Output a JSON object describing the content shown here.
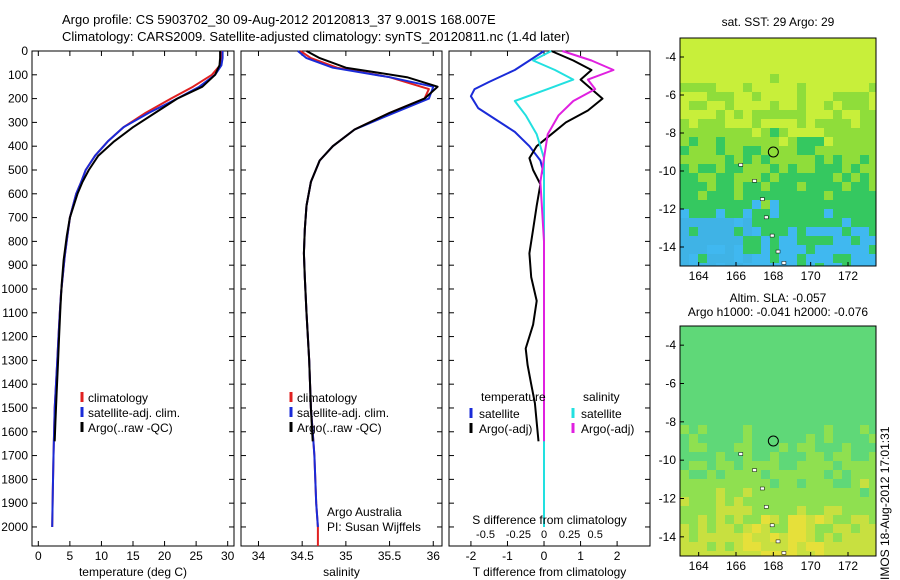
{
  "header": {
    "line1": "Argo profile: CS 5903702_30 09-Aug-2012 20120813_37 9.001S 168.007E",
    "line2": "Climatology: CARS2009. Satellite-adjusted climatology: synTS_20120811.nc (1.4d later)"
  },
  "timestamp": "IMOS 18-Aug-2012 17:01:31",
  "colors": {
    "climatology": "#e02020",
    "satellite": "#1a2bd8",
    "argo": "#000000",
    "satellite_salinity": "#22e0e0",
    "argo_salinity_adj": "#e020e0"
  },
  "chart_data": [
    {
      "type": "line",
      "xlabel": "temperature (deg C)",
      "ylabel": "",
      "xlim": [
        -1,
        31
      ],
      "ylim": [
        2080,
        0
      ],
      "xticks": [
        0,
        5,
        10,
        15,
        20,
        25,
        30
      ],
      "yticks": [
        0,
        100,
        200,
        300,
        400,
        500,
        600,
        700,
        800,
        900,
        1000,
        1100,
        1200,
        1300,
        1400,
        1500,
        1600,
        1700,
        1800,
        1900,
        2000
      ],
      "legend": [
        "climatology",
        "satellite-adj. clim.",
        "Argo(..raw -QC)"
      ],
      "legend_position": "lower-right",
      "series": [
        {
          "name": "climatology",
          "color": "#e02020",
          "x": [
            29.0,
            29.0,
            28.8,
            27.5,
            24.5,
            21.0,
            17.0,
            13.5,
            11.0,
            9.0,
            7.5,
            6.8,
            6.0,
            5.5,
            5.0,
            4.6,
            4.2,
            3.9,
            3.6,
            3.4,
            3.2,
            3.0,
            2.8,
            2.6,
            2.5,
            2.4,
            2.3,
            2.2
          ],
          "y": [
            0,
            30,
            60,
            100,
            150,
            200,
            260,
            320,
            380,
            440,
            500,
            550,
            600,
            650,
            700,
            780,
            860,
            940,
            1020,
            1100,
            1200,
            1300,
            1400,
            1500,
            1600,
            1700,
            1850,
            2000
          ]
        },
        {
          "name": "satellite-adj. clim.",
          "color": "#1a2bd8",
          "x": [
            29.2,
            29.2,
            29.0,
            28.0,
            25.5,
            22.0,
            17.5,
            13.5,
            11.0,
            9.0,
            7.5,
            6.8,
            6.0,
            5.5,
            5.0,
            4.6,
            4.2,
            3.9,
            3.6,
            3.4,
            3.2,
            3.0,
            2.8,
            2.6,
            2.5,
            2.4,
            2.3,
            2.2
          ],
          "y": [
            0,
            30,
            60,
            100,
            150,
            200,
            260,
            320,
            380,
            440,
            500,
            550,
            600,
            650,
            700,
            780,
            860,
            940,
            1020,
            1100,
            1200,
            1300,
            1400,
            1500,
            1600,
            1700,
            1850,
            2000
          ]
        },
        {
          "name": "Argo(..raw -QC)",
          "color": "#000000",
          "x": [
            28.8,
            28.8,
            28.7,
            28.0,
            26.0,
            22.0,
            18.5,
            15.0,
            12.0,
            9.5,
            8.0,
            7.0,
            6.2,
            5.6,
            5.0,
            4.5,
            4.0,
            3.7,
            3.5,
            3.3,
            3.1,
            2.9,
            2.7,
            2.6
          ],
          "y": [
            0,
            30,
            60,
            100,
            150,
            200,
            260,
            320,
            380,
            440,
            500,
            550,
            600,
            650,
            700,
            780,
            880,
            980,
            1080,
            1200,
            1320,
            1440,
            1560,
            1640
          ]
        }
      ]
    },
    {
      "type": "line",
      "xlabel": "salinity",
      "ylabel": "",
      "xlim": [
        33.8,
        36.1
      ],
      "ylim": [
        2080,
        0
      ],
      "xticks": [
        34,
        34.5,
        35,
        35.5,
        36
      ],
      "legend": [
        "climatology",
        "satellite-adj. clim.",
        "Argo(..raw -QC)"
      ],
      "legend_position": "lower-right",
      "annotations": [
        "Argo Australia",
        "PI: Susan Wijffels"
      ],
      "series": [
        {
          "name": "climatology",
          "color": "#e02020",
          "x": [
            34.48,
            34.6,
            34.9,
            35.5,
            35.95,
            35.9,
            35.5,
            35.1,
            34.85,
            34.7,
            34.6,
            34.55,
            34.53,
            34.52,
            34.53,
            34.55,
            34.58,
            34.6,
            34.62,
            34.64,
            34.65,
            34.66,
            34.68,
            34.68
          ],
          "y": [
            0,
            30,
            70,
            110,
            160,
            200,
            260,
            330,
            400,
            460,
            550,
            650,
            750,
            850,
            950,
            1100,
            1300,
            1500,
            1600,
            1700,
            1800,
            1900,
            2000,
            2080
          ]
        },
        {
          "name": "satellite-adj. clim.",
          "color": "#1a2bd8",
          "x": [
            34.45,
            34.55,
            34.85,
            35.5,
            36.0,
            35.95,
            35.55,
            35.1,
            34.85,
            34.7,
            34.6,
            34.55,
            34.53,
            34.52,
            34.53,
            34.55,
            34.58,
            34.6,
            34.62,
            34.64,
            34.65,
            34.66,
            34.68
          ],
          "y": [
            0,
            30,
            70,
            110,
            150,
            200,
            260,
            330,
            400,
            460,
            550,
            650,
            750,
            850,
            950,
            1100,
            1300,
            1500,
            1600,
            1700,
            1800,
            1900,
            2000
          ]
        },
        {
          "name": "Argo(..raw -QC)",
          "color": "#000000",
          "x": [
            34.55,
            34.7,
            35.0,
            35.7,
            36.05,
            35.9,
            35.5,
            35.1,
            34.85,
            34.7,
            34.6,
            34.55,
            34.53,
            34.52,
            34.53,
            34.55,
            34.58,
            34.6,
            34.62
          ],
          "y": [
            0,
            30,
            70,
            110,
            150,
            200,
            260,
            330,
            400,
            460,
            550,
            650,
            750,
            850,
            950,
            1100,
            1300,
            1500,
            1640
          ]
        }
      ]
    },
    {
      "type": "line",
      "xlabel": "T difference from climatology",
      "xlabel_top": "S difference from climatology",
      "ylabel": "",
      "xlim": [
        -2.6,
        2.9
      ],
      "ylim": [
        2080,
        0
      ],
      "xticks": [
        -2,
        -1,
        0,
        1,
        2
      ],
      "xticks_S": [
        "-0.5",
        "-0.25",
        "0",
        "0.25",
        "0.5"
      ],
      "legend_groups": [
        {
          "title": "temperature",
          "entries": [
            "satellite",
            "Argo(-adj)"
          ]
        },
        {
          "title": "salinity",
          "entries": [
            "satellite",
            "Argo(-adj)"
          ]
        }
      ],
      "series": [
        {
          "name": "satellite",
          "group": "temperature",
          "color": "#1a2bd8",
          "x": [
            0.0,
            -0.3,
            -0.8,
            -1.5,
            -1.9,
            -2.0,
            -1.8,
            -1.3,
            -0.8,
            -0.4,
            -0.1,
            0.0,
            0.0,
            0.0,
            0.0,
            0.0
          ],
          "y": [
            0,
            30,
            80,
            130,
            160,
            190,
            240,
            290,
            340,
            400,
            460,
            520,
            700,
            1000,
            1500,
            2000
          ]
        },
        {
          "name": "Argo(-adj)",
          "group": "temperature",
          "color": "#000000",
          "x": [
            0.2,
            0.8,
            1.3,
            1.0,
            1.6,
            1.2,
            0.6,
            0.2,
            -0.2,
            -0.4,
            -0.3,
            -0.1,
            -0.2,
            -0.3,
            -0.4,
            -0.35,
            -0.2,
            -0.3,
            -0.5,
            -0.45,
            -0.35,
            -0.25,
            -0.2,
            -0.15
          ],
          "y": [
            0,
            40,
            80,
            120,
            200,
            250,
            300,
            350,
            400,
            450,
            500,
            560,
            650,
            750,
            850,
            950,
            1050,
            1150,
            1250,
            1320,
            1400,
            1480,
            1560,
            1640
          ]
        },
        {
          "name": "satellite",
          "group": "salinity",
          "color": "#22e0e0",
          "x": [
            0.2,
            -0.3,
            0.3,
            0.8,
            0.1,
            -0.8,
            -0.5,
            -0.2,
            0.0,
            0.0,
            0.0,
            0.0,
            0.0
          ],
          "y": [
            0,
            40,
            80,
            120,
            160,
            210,
            270,
            350,
            450,
            550,
            800,
            1300,
            2000
          ]
        },
        {
          "name": "Argo(-adj)",
          "group": "salinity",
          "color": "#e020e0",
          "x": [
            0.5,
            1.3,
            1.9,
            1.2,
            1.4,
            0.8,
            0.4,
            0.1,
            0.0,
            -0.1,
            0.0,
            0.0,
            0.0
          ],
          "y": [
            0,
            40,
            80,
            120,
            160,
            210,
            270,
            350,
            450,
            550,
            800,
            1300,
            1640
          ]
        }
      ]
    },
    {
      "type": "heatmap",
      "title": "sat. SST: 29 Argo: 29",
      "xlim": [
        163,
        173.5
      ],
      "ylim": [
        -15,
        -3
      ],
      "xticks": [
        164,
        166,
        168,
        170,
        172
      ],
      "yticks": [
        -4,
        -6,
        -8,
        -10,
        -12,
        -14
      ],
      "marker": {
        "lon": 168.0,
        "lat": -9.0,
        "shape": "circle"
      }
    },
    {
      "type": "heatmap",
      "title": "Altim. SLA: -0.057",
      "subtitle": "Argo h1000: -0.041 h2000: -0.076",
      "xlim": [
        163,
        173.5
      ],
      "ylim": [
        -15,
        -3
      ],
      "xticks": [
        164,
        166,
        168,
        170,
        172
      ],
      "yticks": [
        -4,
        -6,
        -8,
        -10,
        -12,
        -14
      ],
      "marker": {
        "lon": 168.0,
        "lat": -9.0,
        "shape": "circle"
      }
    }
  ]
}
